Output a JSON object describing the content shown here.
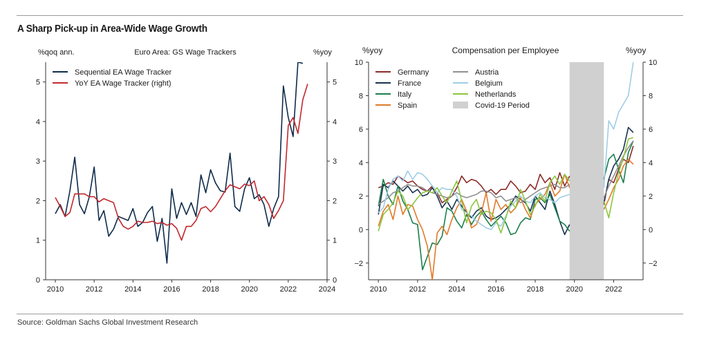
{
  "page": {
    "title": "A Sharp Pick-up in Area-Wide Wage Growth",
    "source": "Source: Goldman Sachs Global Investment Research"
  },
  "chart_data": [
    {
      "type": "line",
      "title": "Euro Area: GS Wage Trackers",
      "ylabel_left": "%qoq ann.",
      "ylabel_right": "%yoy",
      "xlim": [
        2009.5,
        2024
      ],
      "ylim": [
        0,
        5.5
      ],
      "xticks": [
        "2010",
        "2012",
        "2014",
        "2016",
        "2018",
        "2020",
        "2022",
        "2024"
      ],
      "yticks": [
        "0",
        "1",
        "2",
        "3",
        "4",
        "5"
      ],
      "grid": false,
      "legend": "top-left",
      "series": [
        {
          "name": "Sequential EA Wage Tracker",
          "color": "#0e2b4a",
          "x": [
            2010.0,
            2010.25,
            2010.5,
            2010.75,
            2011.0,
            2011.25,
            2011.5,
            2011.75,
            2012.0,
            2012.25,
            2012.5,
            2012.75,
            2013.0,
            2013.25,
            2013.5,
            2013.75,
            2014.0,
            2014.25,
            2014.5,
            2014.75,
            2015.0,
            2015.25,
            2015.5,
            2015.75,
            2016.0,
            2016.25,
            2016.5,
            2016.75,
            2017.0,
            2017.25,
            2017.5,
            2017.75,
            2018.0,
            2018.25,
            2018.5,
            2018.75,
            2019.0,
            2019.25,
            2019.5,
            2019.75,
            2020.0,
            2020.25,
            2020.5,
            2020.75,
            2021.0,
            2021.25,
            2021.5,
            2021.75,
            2022.0,
            2022.25,
            2022.5,
            2022.75,
            2023.0
          ],
          "values": [
            1.67,
            1.9,
            1.6,
            2.25,
            3.1,
            1.9,
            1.67,
            2.1,
            2.85,
            1.5,
            1.75,
            1.1,
            1.28,
            1.6,
            1.55,
            1.5,
            1.8,
            1.35,
            1.45,
            1.7,
            1.85,
            0.97,
            1.55,
            0.42,
            2.3,
            1.55,
            1.95,
            1.65,
            1.95,
            1.6,
            2.65,
            2.2,
            2.78,
            2.45,
            2.25,
            2.22,
            3.2,
            1.85,
            1.73,
            2.3,
            2.58,
            2.05,
            2.15,
            1.9,
            1.35,
            1.8,
            2.1,
            4.9,
            4.1,
            3.62,
            5.5,
            5.47,
            null
          ]
        },
        {
          "name": "YoY EA Wage Tracker (right)",
          "color": "#c0282d",
          "x": [
            2010.0,
            2010.25,
            2010.5,
            2010.75,
            2011.0,
            2011.25,
            2011.5,
            2011.75,
            2012.0,
            2012.25,
            2012.5,
            2012.75,
            2013.0,
            2013.25,
            2013.5,
            2013.75,
            2014.0,
            2014.25,
            2014.5,
            2014.75,
            2015.0,
            2015.25,
            2015.5,
            2015.75,
            2016.0,
            2016.25,
            2016.5,
            2016.75,
            2017.0,
            2017.25,
            2017.5,
            2017.75,
            2018.0,
            2018.25,
            2018.5,
            2018.75,
            2019.0,
            2019.25,
            2019.5,
            2019.75,
            2020.0,
            2020.25,
            2020.5,
            2020.75,
            2021.0,
            2021.25,
            2021.5,
            2021.75,
            2022.0,
            2022.25,
            2022.5,
            2022.75,
            2023.0
          ],
          "values": [
            2.08,
            1.85,
            1.6,
            1.7,
            2.17,
            2.17,
            2.17,
            2.1,
            2.1,
            1.97,
            2.05,
            2.0,
            1.95,
            1.55,
            1.35,
            1.28,
            1.35,
            1.48,
            1.45,
            1.45,
            1.48,
            1.42,
            1.45,
            1.38,
            1.42,
            1.3,
            1.0,
            1.35,
            1.35,
            1.5,
            1.8,
            1.85,
            1.72,
            1.85,
            2.05,
            2.25,
            2.4,
            2.35,
            2.3,
            2.42,
            2.38,
            2.5,
            2.0,
            2.1,
            1.9,
            1.55,
            1.75,
            2.0,
            3.9,
            4.1,
            3.7,
            4.55,
            4.95
          ]
        }
      ]
    },
    {
      "type": "line",
      "title": "Compensation per Employee",
      "ylabel_left": "%yoy",
      "ylabel_right": "%yoy",
      "xlim": [
        2009.5,
        2023.5
      ],
      "ylim": [
        -3,
        10
      ],
      "xticks": [
        "2010",
        "2012",
        "2014",
        "2016",
        "2018",
        "2020",
        "2022"
      ],
      "yticks": [
        "−2",
        "0",
        "2",
        "4",
        "6",
        "8",
        "10"
      ],
      "grid": false,
      "legend": "top-left",
      "shaded": {
        "name": "Covid-19 Period",
        "color": "#d0d0d0",
        "x": [
          2019.75,
          2021.5
        ]
      },
      "series": [
        {
          "name": "Germany",
          "color": "#8b2b27",
          "x": [
            2010.0,
            2010.25,
            2010.5,
            2010.75,
            2011.0,
            2011.25,
            2011.5,
            2011.75,
            2012.0,
            2012.25,
            2012.5,
            2012.75,
            2013.0,
            2013.25,
            2013.5,
            2013.75,
            2014.0,
            2014.25,
            2014.5,
            2014.75,
            2015.0,
            2015.25,
            2015.5,
            2015.75,
            2016.0,
            2016.25,
            2016.5,
            2016.75,
            2017.0,
            2017.25,
            2017.5,
            2017.75,
            2018.0,
            2018.25,
            2018.5,
            2018.75,
            2019.0,
            2019.25,
            2019.5,
            2019.75,
            2021.5,
            2021.75,
            2022.0,
            2022.25,
            2022.5,
            2022.75,
            2023.0
          ],
          "values": [
            2.5,
            2.6,
            2.8,
            2.7,
            3.2,
            3.0,
            2.8,
            2.9,
            2.6,
            2.4,
            2.3,
            2.6,
            2.2,
            1.6,
            1.8,
            2.0,
            2.5,
            3.2,
            2.8,
            3.0,
            2.9,
            2.6,
            2.2,
            2.4,
            2.1,
            2.4,
            2.4,
            2.9,
            2.6,
            2.2,
            2.3,
            2.7,
            2.4,
            3.3,
            2.8,
            3.1,
            2.4,
            3.4,
            2.6,
            3.2,
            1.5,
            3.0,
            2.8,
            3.6,
            4.2,
            4.0,
            5.0
          ]
        },
        {
          "name": "France",
          "color": "#1a3050",
          "x": [
            2010.0,
            2010.25,
            2010.5,
            2010.75,
            2011.0,
            2011.25,
            2011.5,
            2011.75,
            2012.0,
            2012.25,
            2012.5,
            2012.75,
            2013.0,
            2013.25,
            2013.5,
            2013.75,
            2014.0,
            2014.25,
            2014.5,
            2014.75,
            2015.0,
            2015.25,
            2015.5,
            2015.75,
            2016.0,
            2016.25,
            2016.5,
            2016.75,
            2017.0,
            2017.25,
            2017.5,
            2017.75,
            2018.0,
            2018.25,
            2018.5,
            2018.75,
            2019.0,
            2019.25,
            2019.5,
            2019.75,
            2021.5,
            2021.75,
            2022.0,
            2022.25,
            2022.5,
            2022.75,
            2023.0
          ],
          "values": [
            0.9,
            2.7,
            2.5,
            2.9,
            2.6,
            2.3,
            2.6,
            2.2,
            2.4,
            2.0,
            2.1,
            2.5,
            2.0,
            1.3,
            1.7,
            1.2,
            1.8,
            1.4,
            1.0,
            0.7,
            1.1,
            1.3,
            0.8,
            0.6,
            0.7,
            0.9,
            1.2,
            1.5,
            2.0,
            1.8,
            1.6,
            1.1,
            2.0,
            1.6,
            1.2,
            2.3,
            1.5,
            0.5,
            -0.3,
            0.3,
            1.6,
            3.0,
            3.8,
            4.2,
            4.8,
            6.1,
            5.8
          ]
        },
        {
          "name": "Italy",
          "color": "#1a7f4c",
          "x": [
            2010.0,
            2010.25,
            2010.5,
            2010.75,
            2011.0,
            2011.25,
            2011.5,
            2011.75,
            2012.0,
            2012.25,
            2012.5,
            2012.75,
            2013.0,
            2013.25,
            2013.5,
            2013.75,
            2014.0,
            2014.25,
            2014.5,
            2014.75,
            2015.0,
            2015.25,
            2015.5,
            2015.75,
            2016.0,
            2016.25,
            2016.5,
            2016.75,
            2017.0,
            2017.25,
            2017.5,
            2017.75,
            2018.0,
            2018.25,
            2018.5,
            2018.75,
            2019.0,
            2019.25,
            2019.5,
            2019.75,
            2021.5,
            2021.75,
            2022.0,
            2022.25,
            2022.5,
            2022.75,
            2023.0
          ],
          "values": [
            1.4,
            3.0,
            2.0,
            1.5,
            2.6,
            1.7,
            1.2,
            0.4,
            0.3,
            -2.4,
            -1.6,
            -0.8,
            -0.9,
            -0.4,
            1.3,
            1.1,
            0.5,
            0.1,
            0.9,
            0.3,
            0.8,
            1.1,
            0.6,
            0.2,
            0.5,
            0.8,
            0.4,
            -0.3,
            -0.2,
            0.4,
            0.7,
            0.6,
            1.8,
            1.9,
            1.6,
            2.1,
            1.3,
            0.5,
            0.3,
            -0.1,
            3.0,
            4.2,
            4.5,
            3.6,
            2.8,
            4.6,
            5.3
          ]
        },
        {
          "name": "Spain",
          "color": "#e07a28",
          "x": [
            2010.0,
            2010.25,
            2010.5,
            2010.75,
            2011.0,
            2011.25,
            2011.5,
            2011.75,
            2012.0,
            2012.25,
            2012.5,
            2012.75,
            2013.0,
            2013.25,
            2013.5,
            2013.75,
            2014.0,
            2014.25,
            2014.5,
            2014.75,
            2015.0,
            2015.25,
            2015.5,
            2015.75,
            2016.0,
            2016.25,
            2016.5,
            2016.75,
            2017.0,
            2017.25,
            2017.5,
            2017.75,
            2018.0,
            2018.25,
            2018.5,
            2018.75,
            2019.0,
            2019.25,
            2019.5,
            2019.75,
            2021.5,
            2021.75,
            2022.0,
            2022.25,
            2022.5,
            2022.75,
            2023.0
          ],
          "values": [
            0.2,
            1.1,
            1.5,
            0.6,
            2.0,
            0.9,
            1.5,
            1.4,
            0.6,
            0.0,
            -1.0,
            -3.0,
            -0.2,
            0.2,
            -0.3,
            0.6,
            1.3,
            1.8,
            1.1,
            0.1,
            0.3,
            1.0,
            2.2,
            0.5,
            1.8,
            1.2,
            1.5,
            1.0,
            1.3,
            1.9,
            1.2,
            0.7,
            1.5,
            1.8,
            2.1,
            2.8,
            2.0,
            2.3,
            3.3,
            2.5,
            1.2,
            1.8,
            2.5,
            3.0,
            3.8,
            4.2,
            3.9
          ]
        },
        {
          "name": "Austria",
          "color": "#909090",
          "x": [
            2010.0,
            2010.25,
            2010.5,
            2010.75,
            2011.0,
            2011.25,
            2011.5,
            2011.75,
            2012.0,
            2012.25,
            2012.5,
            2012.75,
            2013.0,
            2013.25,
            2013.5,
            2013.75,
            2014.0,
            2014.25,
            2014.5,
            2014.75,
            2015.0,
            2015.25,
            2015.5,
            2015.75,
            2016.0,
            2016.25,
            2016.5,
            2016.75,
            2017.0,
            2017.25,
            2017.5,
            2017.75,
            2018.0,
            2018.25,
            2018.5,
            2018.75,
            2019.0,
            2019.25,
            2019.5,
            2019.75,
            2021.5,
            2021.75,
            2022.0,
            2022.25,
            2022.5,
            2022.75,
            2023.0
          ],
          "values": [
            1.5,
            1.7,
            1.9,
            2.2,
            2.3,
            2.5,
            2.7,
            2.6,
            2.6,
            2.5,
            2.3,
            2.2,
            2.1,
            2.0,
            1.9,
            2.0,
            2.2,
            2.0,
            1.9,
            2.0,
            2.1,
            2.3,
            2.3,
            2.2,
            1.9,
            2.0,
            1.7,
            1.8,
            1.9,
            1.6,
            1.8,
            2.0,
            2.2,
            2.4,
            2.5,
            2.6,
            2.7,
            2.5,
            2.5,
            2.7,
            1.9,
            2.6,
            3.2,
            3.8,
            4.4,
            4.9,
            5.3
          ]
        },
        {
          "name": "Belgium",
          "color": "#9ecde6",
          "x": [
            2010.0,
            2010.25,
            2010.5,
            2010.75,
            2011.0,
            2011.25,
            2011.5,
            2011.75,
            2012.0,
            2012.25,
            2012.5,
            2012.75,
            2013.0,
            2013.25,
            2013.5,
            2013.75,
            2014.0,
            2014.25,
            2014.5,
            2014.75,
            2015.0,
            2015.25,
            2015.5,
            2015.75,
            2016.0,
            2016.25,
            2016.5,
            2016.75,
            2017.0,
            2017.25,
            2017.5,
            2017.75,
            2018.0,
            2018.25,
            2018.5,
            2018.75,
            2019.0,
            2019.25,
            2019.5,
            2019.75,
            2021.5,
            2021.75,
            2022.0,
            2022.25,
            2022.5,
            2022.75,
            2023.0
          ],
          "values": [
            1.0,
            1.3,
            2.4,
            3.0,
            3.2,
            2.9,
            3.5,
            3.0,
            3.4,
            3.3,
            3.0,
            2.6,
            2.2,
            2.5,
            2.4,
            2.4,
            2.0,
            1.2,
            1.0,
            0.8,
            0.5,
            0.3,
            0.1,
            0.0,
            0.4,
            0.2,
            0.8,
            1.4,
            1.7,
            2.0,
            1.7,
            1.6,
            2.0,
            2.2,
            1.9,
            1.8,
            1.6,
            1.9,
            2.0,
            2.1,
            2.5,
            6.5,
            6.0,
            7.0,
            7.5,
            8.0,
            10.0
          ]
        },
        {
          "name": "Netherlands",
          "color": "#8cc63f",
          "x": [
            2010.0,
            2010.25,
            2010.5,
            2010.75,
            2011.0,
            2011.25,
            2011.5,
            2011.75,
            2012.0,
            2012.25,
            2012.5,
            2012.75,
            2013.0,
            2013.25,
            2013.5,
            2013.75,
            2014.0,
            2014.25,
            2014.5,
            2014.75,
            2015.0,
            2015.25,
            2015.5,
            2015.75,
            2016.0,
            2016.25,
            2016.5,
            2016.75,
            2017.0,
            2017.25,
            2017.5,
            2017.75,
            2018.0,
            2018.25,
            2018.5,
            2018.75,
            2019.0,
            2019.25,
            2019.5,
            2019.75,
            2021.5,
            2021.75,
            2022.0,
            2022.25,
            2022.5,
            2022.75,
            2023.0
          ],
          "values": [
            -0.1,
            0.9,
            1.2,
            1.6,
            2.3,
            2.0,
            1.2,
            1.5,
            1.9,
            2.2,
            2.3,
            2.2,
            2.5,
            2.0,
            1.6,
            2.3,
            2.9,
            1.7,
            0.4,
            1.4,
            1.8,
            0.9,
            1.1,
            1.0,
            0.6,
            -0.2,
            0.7,
            1.7,
            1.3,
            2.4,
            1.7,
            0.9,
            1.4,
            2.1,
            1.7,
            2.8,
            3.2,
            2.7,
            3.3,
            2.9,
            1.7,
            0.7,
            2.2,
            3.4,
            4.3,
            5.4,
            5.5
          ]
        }
      ]
    }
  ]
}
